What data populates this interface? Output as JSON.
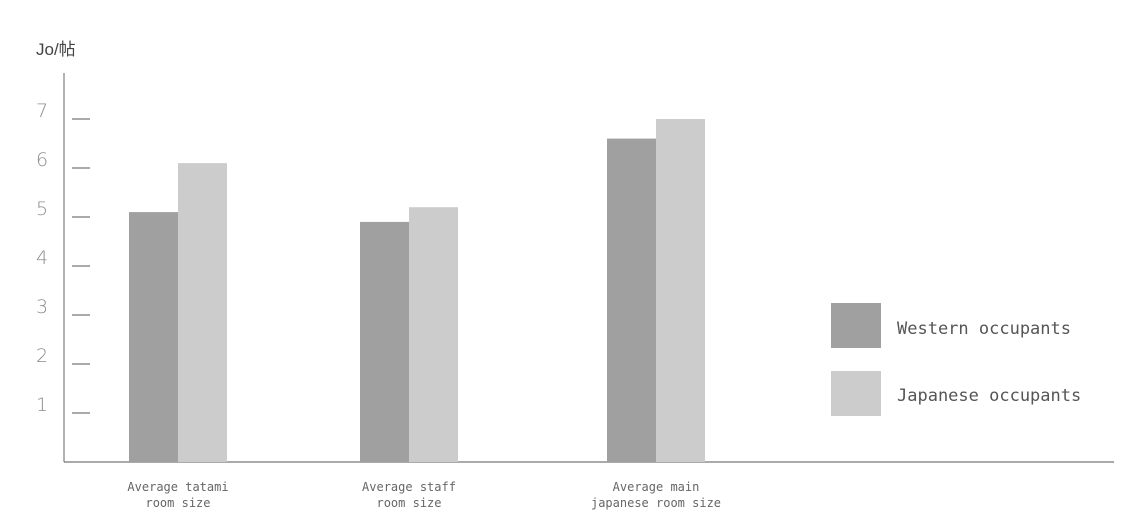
{
  "chart_data": {
    "type": "bar",
    "title": "",
    "xlabel": "",
    "ylabel": "Jo/帖",
    "categories": [
      [
        "Average tatami",
        "room size"
      ],
      [
        "Average staff",
        "room size"
      ],
      [
        "Average main",
        "japanese room size"
      ]
    ],
    "series": [
      {
        "name": "Western occupants",
        "values": [
          5.1,
          4.9,
          6.6
        ],
        "color": "#a0a0a0"
      },
      {
        "name": "Japanese occupants",
        "values": [
          6.1,
          5.2,
          7.0
        ],
        "color": "#cccccc"
      }
    ],
    "ylim": [
      0,
      7.8
    ],
    "yticks": [
      1,
      2,
      3,
      4,
      5,
      6,
      7
    ],
    "grid": false,
    "legend": "right"
  }
}
